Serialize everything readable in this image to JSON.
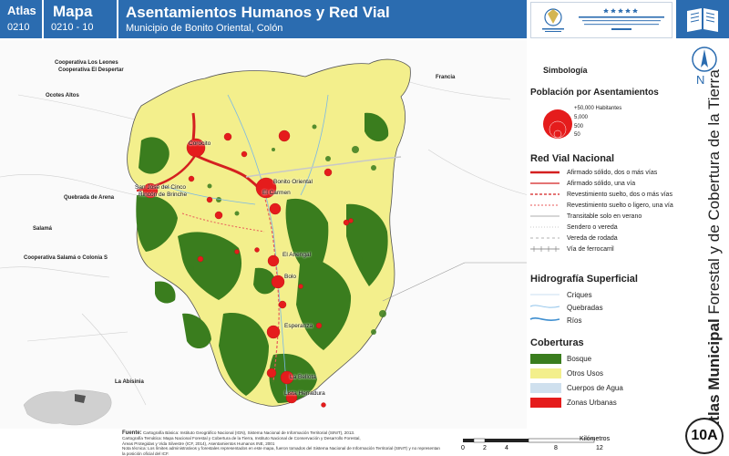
{
  "header": {
    "atlas_label": "Atlas",
    "atlas_code": "0210",
    "mapa_label": "Mapa",
    "mapa_code": "0210 - 10",
    "title": "Asentamientos Humanos y Red Vial",
    "subtitle": "Municipio de Bonito Oriental, Colón",
    "color_primary": "#2b6cb0"
  },
  "map": {
    "external_labels": [
      "Cooperativa Los Leones",
      "Cooperativa El Despertar",
      "Ocotes Altos",
      "Francia",
      "Quebrada de Arena",
      "Salamá",
      "Cooperativa Salamá o Colonia S",
      "La Abisinia"
    ],
    "towns": [
      "Corocito",
      "San José del Cinco",
      "Rincón de Brinche",
      "Bonito Oriental",
      "El Carmen",
      "El Anengal",
      "Bolo",
      "Esperanza",
      "La Bellota",
      "Lista Herradura"
    ],
    "colors": {
      "bosque": "#3a7d1e",
      "otros_usos": "#f3ef8c",
      "cuerpos_agua": "#cfe0ee",
      "zonas_urbanas": "#e51c1c",
      "settlement": "#e51c1c",
      "road": "#d42020"
    }
  },
  "legend": {
    "simbologia": "Simbología",
    "poblacion_title": "Población por Asentamientos",
    "poblacion_classes": [
      "+50,000 Habitantes",
      "5,000",
      "500",
      "50"
    ],
    "red_vial_title": "Red Vial Nacional",
    "red_vial_items": [
      "Afirmado sólido, dos o más vías",
      "Afirmado sólido, una vía",
      "Revestimiento suelto, dos o más vías",
      "Revestimiento suelto o ligero, una vía",
      "Transitable solo en verano",
      "Sendero o vereda",
      "Vereda de rodada",
      "Vía de ferrocarril"
    ],
    "hidro_title": "Hidrografía Superficial",
    "hidro_items": [
      "Criques",
      "Quebradas",
      "Ríos"
    ],
    "coberturas_title": "Coberturas",
    "coberturas_items": [
      "Bosque",
      "Otros Usos",
      "Cuerpos de Agua",
      "Zonas Urbanas"
    ]
  },
  "side": {
    "north": "N",
    "vertical_bold": "Atlas Municipal",
    "vertical_rest": "Forestal y de Cobertura de la Tierra",
    "badge": "10A"
  },
  "footer": {
    "fuente_label": "Fuente:",
    "fuente_lines": [
      "Cartografía Básica: Instituto Geográfico Nacional (IGN), Sistema Nacional de Información Territorial (SINIT), 2013.",
      "Cartografía Temática: Mapa Nacional Forestal y Cobertura de la Tierra, Instituto Nacional de Conservación y Desarrollo Forestal,",
      "Áreas Protegidas y Vida Silvestre (ICF, 2014), Asentamientos Humanos INE, 2001"
    ],
    "nota": "Nota técnica: Los límites administrativos y forestales representados en este mapa, fueron tomados del Sistema Nacional de Información Territorial (SINIT) y no representan la posición oficial del ICF.",
    "scale_ticks": [
      "0",
      "2",
      "4",
      "8",
      "12"
    ],
    "scale_unit": "Kilómetros"
  }
}
